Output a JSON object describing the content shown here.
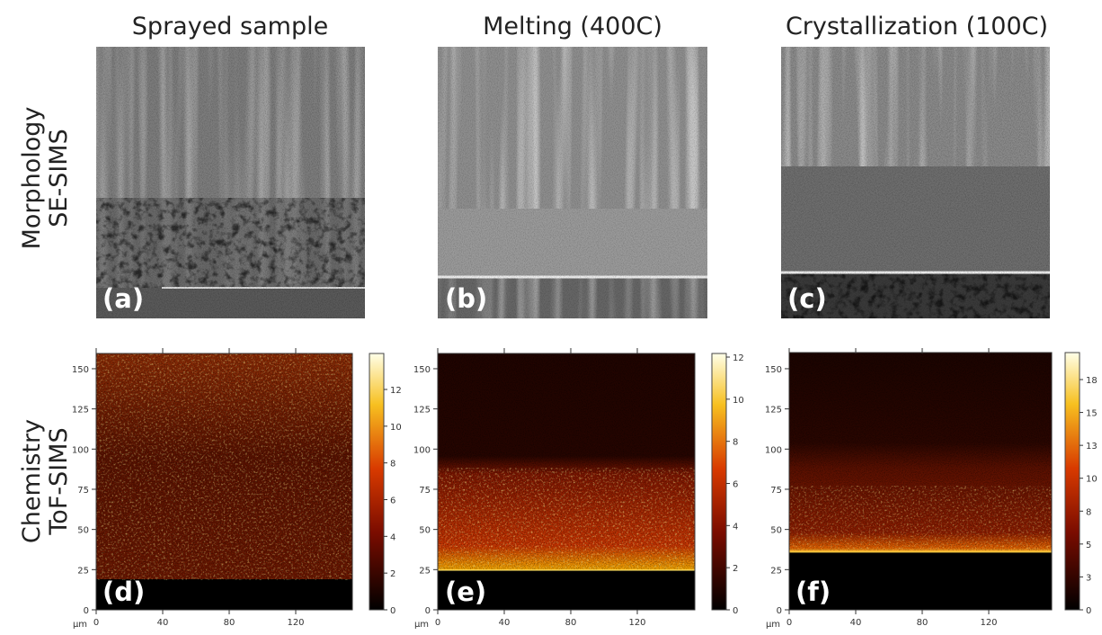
{
  "columns": [
    "Sprayed sample",
    "Melting (400C)",
    "Crystallization (100C)"
  ],
  "rows": [
    {
      "line1": "Morphology",
      "line2": "SE-SIMS"
    },
    {
      "line1": "Chemistry",
      "line2": "ToF-SIMS"
    }
  ],
  "panels": [
    "(a)",
    "(b)",
    "(c)",
    "(d)",
    "(e)",
    "(f)"
  ],
  "maps": [
    {
      "unit": "µm",
      "yticks": [
        "0",
        "25",
        "50",
        "75",
        "100",
        "125",
        "150"
      ],
      "xticks": [
        "0",
        "40",
        "80",
        "120"
      ],
      "colorbar_ticks": [
        "0",
        "2",
        "4",
        "6",
        "8",
        "10",
        "12"
      ]
    },
    {
      "unit": "µm",
      "yticks": [
        "0",
        "25",
        "50",
        "75",
        "100",
        "125",
        "150"
      ],
      "xticks": [
        "0",
        "40",
        "80",
        "120"
      ],
      "colorbar_ticks": [
        "0",
        "2",
        "4",
        "6",
        "8",
        "10",
        "12"
      ]
    },
    {
      "unit": "µm",
      "yticks": [
        "0",
        "25",
        "50",
        "75",
        "100",
        "125",
        "150"
      ],
      "xticks": [
        "0",
        "40",
        "80",
        "120"
      ],
      "colorbar_ticks": [
        "0",
        "3",
        "5",
        "8",
        "10",
        "13",
        "15",
        "18"
      ]
    }
  ]
}
